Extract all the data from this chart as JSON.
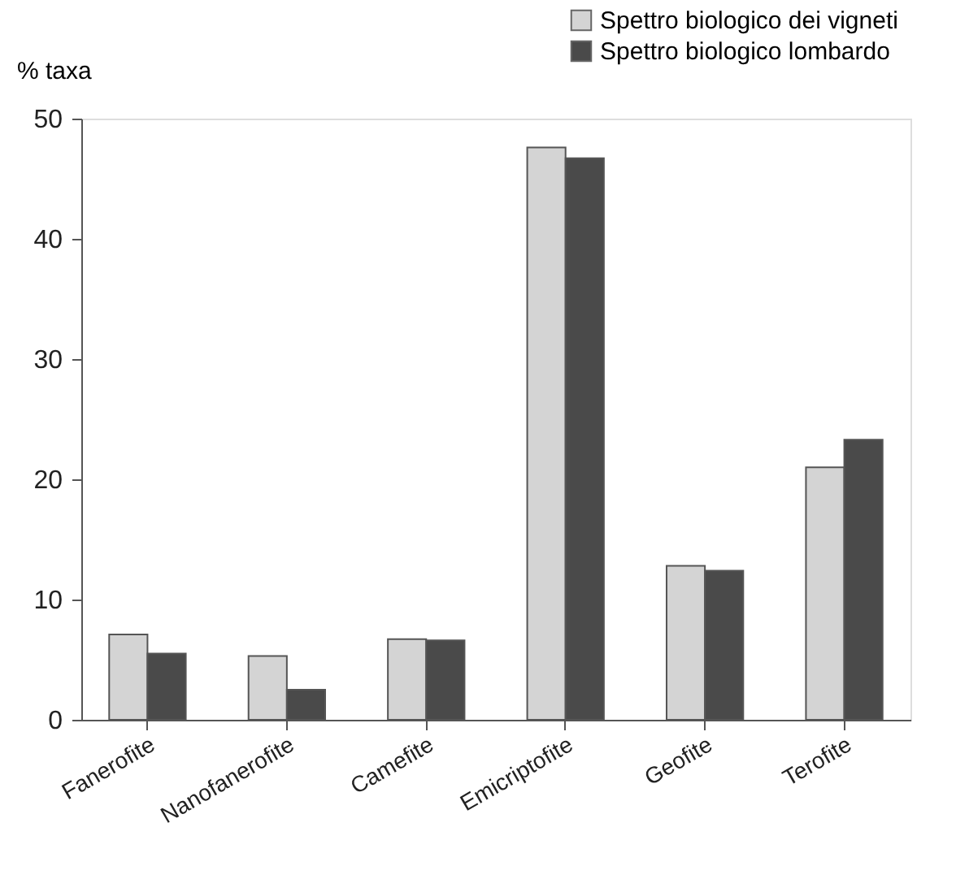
{
  "chart_data": {
    "type": "bar",
    "ylabel": "% taxa",
    "categories": [
      "Fanerofite",
      "Nanofanerofite",
      "Camefite",
      "Emicriptofite",
      "Geofite",
      "Terofite"
    ],
    "series": [
      {
        "name": "Spettro biologico dei vigneti",
        "color": "#d4d4d4",
        "values": [
          7.1,
          5.3,
          6.7,
          47.6,
          12.8,
          21.0
        ]
      },
      {
        "name": "Spettro biologico lombardo",
        "color": "#4a4a4a",
        "values": [
          5.5,
          2.5,
          6.6,
          46.7,
          12.4,
          23.3
        ]
      }
    ],
    "ylim": [
      0,
      50
    ],
    "yticks": [
      0,
      10,
      20,
      30,
      40,
      50
    ],
    "grid": false,
    "legend": "top right"
  }
}
